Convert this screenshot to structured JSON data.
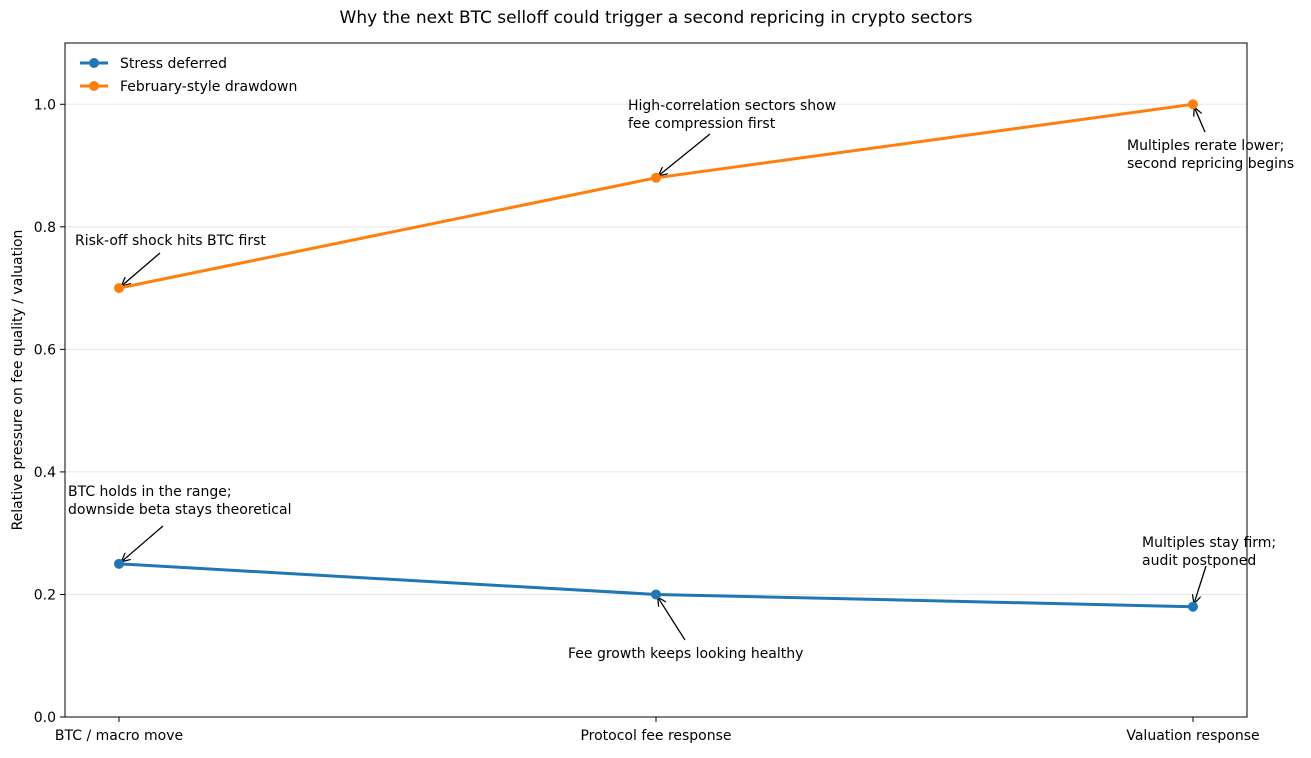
{
  "chart_data": {
    "type": "line",
    "title": "Why the next BTC selloff could trigger a second repricing in crypto sectors",
    "xlabel": "",
    "ylabel": "Relative pressure on fee quality / valuation",
    "categories": [
      "BTC / macro move",
      "Protocol fee response",
      "Valuation response"
    ],
    "ylim": [
      0,
      1.1
    ],
    "yticks": [
      0.0,
      0.2,
      0.4,
      0.6,
      0.8,
      1.0
    ],
    "ytick_labels": [
      "0.0",
      "0.2",
      "0.4",
      "0.6",
      "0.8",
      "1.0"
    ],
    "grid": "horizontal",
    "legend_position": "top-left",
    "series": [
      {
        "name": "Stress deferred",
        "color": "#1f77b4",
        "values": [
          0.25,
          0.2,
          0.18
        ]
      },
      {
        "name": "February-style drawdown",
        "color": "#ff7f0e",
        "values": [
          0.7,
          0.88,
          1.0
        ]
      }
    ],
    "annotations": [
      {
        "series": 1,
        "point": 0,
        "lines": [
          "Risk-off shock hits BTC first"
        ]
      },
      {
        "series": 1,
        "point": 1,
        "lines": [
          "High-correlation sectors show",
          "fee compression first"
        ]
      },
      {
        "series": 1,
        "point": 2,
        "lines": [
          "Multiples rerate lower;",
          "second repricing begins"
        ]
      },
      {
        "series": 0,
        "point": 0,
        "lines": [
          "BTC holds in the range;",
          "downside beta stays theoretical"
        ]
      },
      {
        "series": 0,
        "point": 1,
        "lines": [
          "Fee growth keeps looking healthy"
        ]
      },
      {
        "series": 0,
        "point": 2,
        "lines": [
          "Multiples stay firm;",
          "audit postponed"
        ]
      }
    ]
  }
}
